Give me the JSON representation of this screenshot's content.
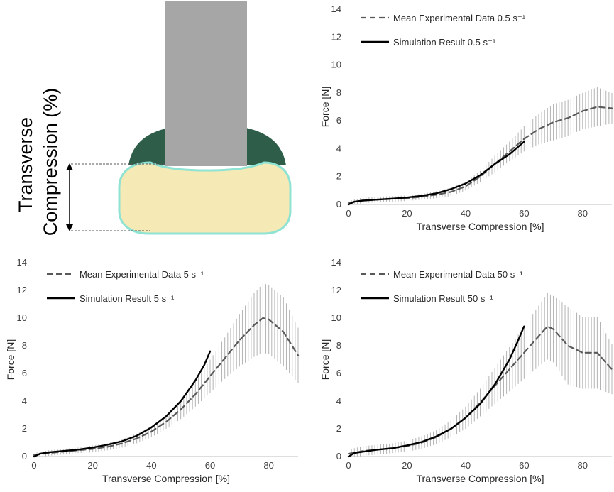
{
  "diagram": {
    "label_line1": "Transverse",
    "label_line2": "Compression (%)",
    "colors": {
      "indenter": "#a6a6a6",
      "cap": "#2e5e4a",
      "specimen": "#f5e9b5",
      "outline": "#8fe3d3"
    }
  },
  "chart_data": [
    {
      "type": "line",
      "panel": "top-right",
      "xlabel": "Transverse Compression [%]",
      "ylabel": "Force  [N]",
      "xlim": [
        0,
        90
      ],
      "ylim": [
        0,
        14
      ],
      "xticks": [
        0,
        20,
        40,
        60,
        80
      ],
      "yticks": [
        0,
        2,
        4,
        6,
        8,
        10,
        12,
        14
      ],
      "legend_position": "top-right",
      "series": [
        {
          "name": "Mean Experimental Data 0.5 s⁻¹",
          "style": "dashed",
          "color": "#595959",
          "x": [
            0,
            5,
            10,
            15,
            20,
            25,
            30,
            35,
            40,
            45,
            50,
            55,
            60,
            65,
            70,
            75,
            80,
            85,
            90
          ],
          "y": [
            0.1,
            0.3,
            0.35,
            0.4,
            0.45,
            0.55,
            0.7,
            0.9,
            1.3,
            2.0,
            2.9,
            3.8,
            4.7,
            5.4,
            5.9,
            6.2,
            6.7,
            7.0,
            6.9
          ],
          "err": [
            0.15,
            0.2,
            0.2,
            0.2,
            0.2,
            0.2,
            0.25,
            0.3,
            0.3,
            0.4,
            0.6,
            0.7,
            0.9,
            1.1,
            1.3,
            1.3,
            1.3,
            1.4,
            1.1
          ]
        },
        {
          "name": "Simulation Result 0.5 s⁻¹",
          "style": "solid",
          "color": "#000000",
          "x": [
            0,
            2,
            5,
            10,
            15,
            20,
            25,
            30,
            35,
            40,
            45,
            50,
            55,
            60
          ],
          "y": [
            0.0,
            0.2,
            0.28,
            0.35,
            0.42,
            0.5,
            0.62,
            0.8,
            1.1,
            1.5,
            2.1,
            2.9,
            3.6,
            4.5
          ]
        }
      ]
    },
    {
      "type": "line",
      "panel": "bottom-left",
      "xlabel": "Transverse Compression [%]",
      "ylabel": "Force  [N]",
      "xlim": [
        0,
        90
      ],
      "ylim": [
        0,
        14
      ],
      "xticks": [
        0,
        20,
        40,
        60,
        80
      ],
      "yticks": [
        0,
        2,
        4,
        6,
        8,
        10,
        12,
        14
      ],
      "legend_position": "top-left",
      "series": [
        {
          "name": "Mean Experimental Data 5 s⁻¹",
          "style": "dashed",
          "color": "#595959",
          "x": [
            0,
            5,
            10,
            15,
            20,
            25,
            30,
            35,
            40,
            45,
            50,
            55,
            60,
            65,
            70,
            75,
            78,
            80,
            85,
            90
          ],
          "y": [
            0.1,
            0.25,
            0.35,
            0.45,
            0.55,
            0.7,
            0.95,
            1.3,
            1.8,
            2.5,
            3.4,
            4.5,
            5.8,
            7.1,
            8.4,
            9.5,
            10.0,
            9.9,
            9.0,
            7.3
          ],
          "err": [
            0.15,
            0.2,
            0.2,
            0.2,
            0.25,
            0.25,
            0.3,
            0.35,
            0.4,
            0.5,
            0.7,
            0.9,
            1.2,
            1.5,
            1.9,
            2.3,
            2.5,
            2.5,
            2.5,
            2.0
          ]
        },
        {
          "name": "Simulation Result 5 s⁻¹",
          "style": "solid",
          "color": "#000000",
          "x": [
            0,
            2,
            5,
            10,
            15,
            20,
            25,
            30,
            35,
            40,
            45,
            50,
            55,
            58,
            60
          ],
          "y": [
            0.0,
            0.2,
            0.3,
            0.4,
            0.5,
            0.65,
            0.85,
            1.1,
            1.5,
            2.1,
            2.9,
            4.0,
            5.5,
            6.6,
            7.6
          ]
        }
      ]
    },
    {
      "type": "line",
      "panel": "bottom-right",
      "xlabel": "Transverse Compression [%]",
      "ylabel": "Force  [N]",
      "xlim": [
        0,
        90
      ],
      "ylim": [
        0,
        14
      ],
      "xticks": [
        0,
        20,
        40,
        60,
        80
      ],
      "yticks": [
        0,
        2,
        4,
        6,
        8,
        10,
        12,
        14
      ],
      "legend_position": "top-left",
      "series": [
        {
          "name": "Mean Experimental Data 50 s⁻¹",
          "style": "dashed",
          "color": "#595959",
          "x": [
            0,
            5,
            10,
            15,
            20,
            25,
            30,
            35,
            40,
            45,
            50,
            55,
            60,
            65,
            68,
            70,
            75,
            80,
            85,
            90
          ],
          "y": [
            0.2,
            0.4,
            0.5,
            0.6,
            0.75,
            1.0,
            1.4,
            2.0,
            2.8,
            3.9,
            5.1,
            6.3,
            7.5,
            8.7,
            9.4,
            9.2,
            8.0,
            7.5,
            7.5,
            6.3
          ],
          "err": [
            0.3,
            0.35,
            0.35,
            0.35,
            0.4,
            0.45,
            0.5,
            0.6,
            0.8,
            1.0,
            1.3,
            1.6,
            1.9,
            2.2,
            2.4,
            2.4,
            2.8,
            2.6,
            2.6,
            1.8
          ]
        },
        {
          "name": "Simulation Result 50 s⁻¹",
          "style": "solid",
          "color": "#000000",
          "x": [
            0,
            2,
            5,
            10,
            15,
            20,
            25,
            30,
            35,
            40,
            45,
            50,
            55,
            58,
            60
          ],
          "y": [
            0.0,
            0.25,
            0.35,
            0.5,
            0.6,
            0.8,
            1.05,
            1.45,
            2.0,
            2.8,
            3.8,
            5.2,
            7.0,
            8.4,
            9.4
          ]
        }
      ]
    }
  ]
}
